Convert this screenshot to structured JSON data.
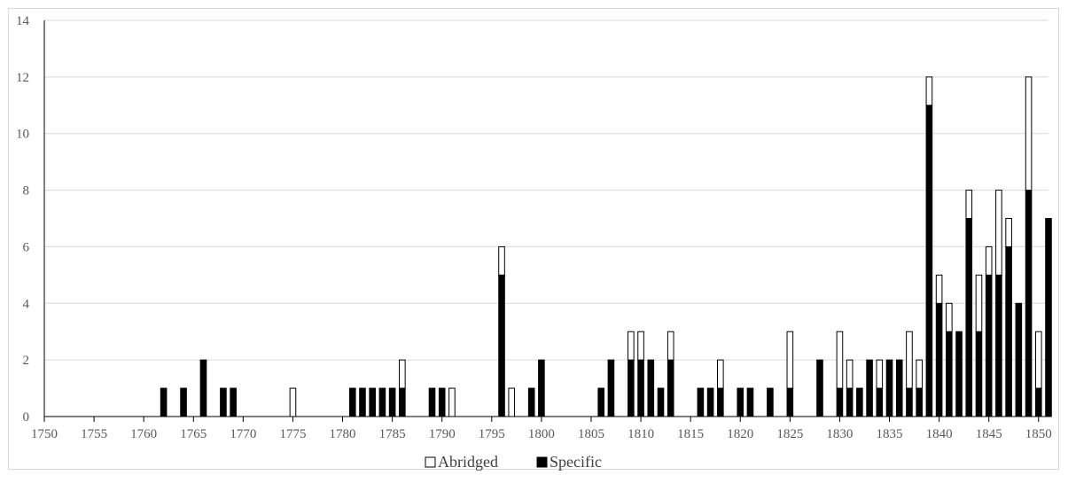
{
  "chart_data": {
    "type": "bar",
    "stacked": true,
    "xlim": [
      1750,
      1851
    ],
    "ylim": [
      0,
      14
    ],
    "x_ticks": [
      1750,
      1755,
      1760,
      1765,
      1770,
      1775,
      1780,
      1785,
      1790,
      1795,
      1800,
      1805,
      1810,
      1815,
      1820,
      1825,
      1830,
      1835,
      1840,
      1845,
      1850
    ],
    "y_ticks": [
      0,
      2,
      4,
      6,
      8,
      10,
      12,
      14
    ],
    "grid": "horizontal",
    "legend_position": "bottom",
    "series": [
      {
        "name": "Specific",
        "color": "#000000",
        "points": [
          [
            1762,
            1
          ],
          [
            1764,
            1
          ],
          [
            1766,
            2
          ],
          [
            1768,
            1
          ],
          [
            1769,
            1
          ],
          [
            1781,
            1
          ],
          [
            1782,
            1
          ],
          [
            1783,
            1
          ],
          [
            1784,
            1
          ],
          [
            1785,
            1
          ],
          [
            1786,
            1
          ],
          [
            1789,
            1
          ],
          [
            1790,
            1
          ],
          [
            1796,
            5
          ],
          [
            1799,
            1
          ],
          [
            1800,
            2
          ],
          [
            1806,
            1
          ],
          [
            1807,
            2
          ],
          [
            1809,
            2
          ],
          [
            1810,
            2
          ],
          [
            1811,
            2
          ],
          [
            1812,
            1
          ],
          [
            1813,
            2
          ],
          [
            1816,
            1
          ],
          [
            1817,
            1
          ],
          [
            1818,
            1
          ],
          [
            1820,
            1
          ],
          [
            1821,
            1
          ],
          [
            1823,
            1
          ],
          [
            1825,
            1
          ],
          [
            1828,
            2
          ],
          [
            1830,
            1
          ],
          [
            1831,
            1
          ],
          [
            1832,
            1
          ],
          [
            1833,
            2
          ],
          [
            1834,
            1
          ],
          [
            1835,
            2
          ],
          [
            1836,
            2
          ],
          [
            1837,
            1
          ],
          [
            1838,
            1
          ],
          [
            1839,
            11
          ],
          [
            1840,
            4
          ],
          [
            1841,
            3
          ],
          [
            1842,
            3
          ],
          [
            1843,
            7
          ],
          [
            1844,
            3
          ],
          [
            1845,
            5
          ],
          [
            1846,
            5
          ],
          [
            1847,
            6
          ],
          [
            1848,
            4
          ],
          [
            1849,
            8
          ],
          [
            1850,
            1
          ],
          [
            1851,
            7
          ]
        ]
      },
      {
        "name": "Abridged",
        "color": "#ffffff",
        "points": [
          [
            1775,
            1
          ],
          [
            1786,
            1
          ],
          [
            1791,
            1
          ],
          [
            1796,
            1
          ],
          [
            1797,
            1
          ],
          [
            1809,
            1
          ],
          [
            1810,
            1
          ],
          [
            1813,
            1
          ],
          [
            1818,
            1
          ],
          [
            1825,
            2
          ],
          [
            1830,
            2
          ],
          [
            1831,
            1
          ],
          [
            1834,
            1
          ],
          [
            1837,
            2
          ],
          [
            1838,
            1
          ],
          [
            1839,
            1
          ],
          [
            1840,
            1
          ],
          [
            1841,
            1
          ],
          [
            1843,
            1
          ],
          [
            1844,
            2
          ],
          [
            1845,
            1
          ],
          [
            1846,
            3
          ],
          [
            1847,
            1
          ],
          [
            1849,
            4
          ],
          [
            1850,
            2
          ]
        ]
      }
    ],
    "legend": [
      "Abridged",
      "Specific"
    ]
  }
}
